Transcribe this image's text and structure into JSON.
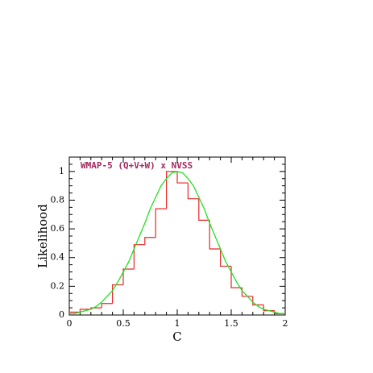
{
  "chart_data": {
    "type": "histogram",
    "title": "WMAP-5 (Q+V+W) x NVSS",
    "x_label": "C",
    "y_label": "Likelihood",
    "bins": [
      0,
      0.1,
      0.2,
      0.3,
      0.4,
      0.5,
      0.6,
      0.7,
      0.8,
      0.9,
      1.0,
      1.1,
      1.2,
      1.3,
      1.4,
      1.5,
      1.6,
      1.7,
      1.8,
      1.9,
      2.0
    ],
    "values": [
      0.02,
      0.04,
      0.05,
      0.08,
      0.21,
      0.32,
      0.49,
      0.54,
      0.74,
      1.0,
      0.92,
      0.81,
      0.66,
      0.46,
      0.34,
      0.19,
      0.13,
      0.07,
      0.03,
      0.01
    ],
    "color": "#e8272a",
    "curve": {
      "type": "line",
      "color": "#22e022",
      "x": [
        0,
        0.05,
        0.1,
        0.15,
        0.2,
        0.25,
        0.3,
        0.35,
        0.4,
        0.45,
        0.5,
        0.55,
        0.6,
        0.65,
        0.7,
        0.75,
        0.8,
        0.85,
        0.9,
        0.95,
        1.0,
        1.05,
        1.1,
        1.15,
        1.2,
        1.25,
        1.3,
        1.35,
        1.4,
        1.45,
        1.5,
        1.55,
        1.6,
        1.65,
        1.7,
        1.75,
        1.8,
        1.85,
        1.9,
        1.95,
        2.0
      ],
      "values": [
        0.01,
        0.01,
        0.02,
        0.03,
        0.04,
        0.06,
        0.09,
        0.13,
        0.17,
        0.23,
        0.3,
        0.37,
        0.46,
        0.55,
        0.64,
        0.74,
        0.82,
        0.9,
        0.95,
        0.99,
        1.0,
        0.99,
        0.95,
        0.9,
        0.82,
        0.74,
        0.64,
        0.55,
        0.46,
        0.37,
        0.3,
        0.23,
        0.17,
        0.13,
        0.09,
        0.06,
        0.04,
        0.03,
        0.02,
        0.01,
        0.01
      ]
    },
    "xlim": [
      0,
      2
    ],
    "ylim": [
      0,
      1.1
    ],
    "xticks": [
      0,
      0.5,
      1,
      1.5,
      2
    ],
    "yticks": [
      0,
      0.2,
      0.4,
      0.6,
      0.8,
      1
    ],
    "xticks_minor": [
      0.1,
      0.2,
      0.3,
      0.4,
      0.6,
      0.7,
      0.8,
      0.9,
      1.1,
      1.2,
      1.3,
      1.4,
      1.6,
      1.7,
      1.8,
      1.9
    ],
    "yticks_minor": [
      0.05,
      0.1,
      0.15,
      0.25,
      0.3,
      0.35,
      0.45,
      0.5,
      0.55,
      0.65,
      0.7,
      0.75,
      0.85,
      0.9,
      0.95,
      1.05
    ],
    "grid": false
  }
}
